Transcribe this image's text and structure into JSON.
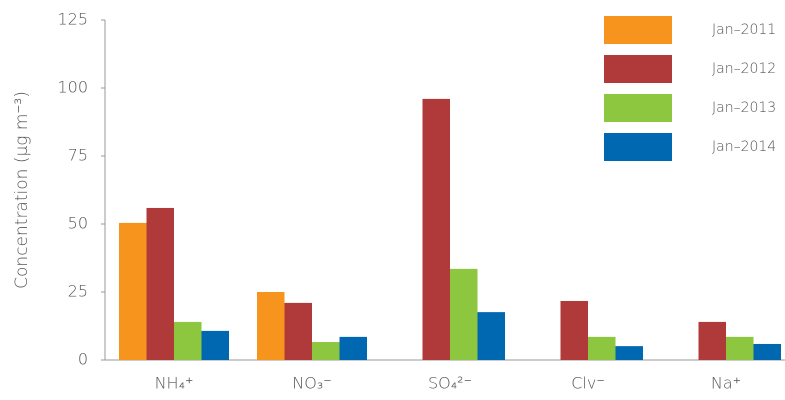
{
  "chart_data": {
    "type": "bar",
    "y_label": "Concentration (μg m⁻³)",
    "categories": [
      "NH₄⁺",
      "NO₃⁻",
      "SO₄²⁻",
      "Clv⁻",
      "Na⁺"
    ],
    "series": [
      {
        "name": "Jan–2011",
        "color": "#f7941d",
        "values": [
          50.4,
          25,
          null,
          null,
          null
        ]
      },
      {
        "name": "Jan–2012",
        "color": "#b03a3a",
        "values": [
          55.9,
          21,
          96,
          21.7,
          14
        ]
      },
      {
        "name": "Jan–2013",
        "color": "#8dc63f",
        "values": [
          14,
          6.6,
          33.5,
          8.5,
          8.5
        ]
      },
      {
        "name": "Jan–2014",
        "color": "#0067b1",
        "values": [
          10.7,
          8.5,
          17.6,
          5.1,
          5.9
        ]
      }
    ],
    "ylim": [
      0,
      125
    ],
    "yticks": [
      0,
      25,
      50,
      75,
      100,
      125
    ],
    "grid": false,
    "legend": "top-right"
  }
}
